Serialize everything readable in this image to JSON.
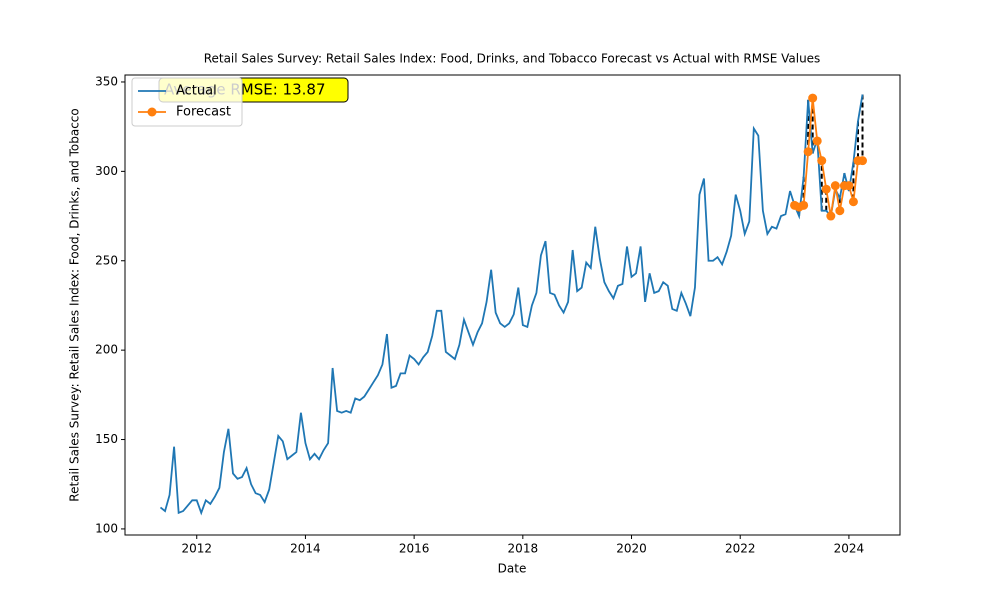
{
  "chart_data": {
    "type": "line",
    "title": "Retail Sales Survey: Retail Sales Index: Food, Drinks, and Tobacco Forecast vs Actual with RMSE Values",
    "x_label": "Date",
    "y_label": "Retail Sales Survey: Retail Sales Index: Food, Drinks, and Tobacco",
    "annotation": "Average RMSE: 13.87",
    "xlim": [
      2010.68,
      2024.94
    ],
    "xticks": [
      2012,
      2014,
      2016,
      2018,
      2020,
      2022,
      2024
    ],
    "ylim": [
      96.6,
      353.9
    ],
    "yticks": [
      100,
      150,
      200,
      250,
      300,
      350
    ],
    "legend": "upper left",
    "grid": false,
    "series": [
      {
        "name": "Actual",
        "color": "#1f77b4",
        "x": [
          2011.333,
          2011.417,
          2011.5,
          2011.583,
          2011.667,
          2011.75,
          2011.833,
          2011.917,
          2012,
          2012.083,
          2012.167,
          2012.25,
          2012.333,
          2012.417,
          2012.5,
          2012.583,
          2012.667,
          2012.75,
          2012.833,
          2012.917,
          2013,
          2013.083,
          2013.167,
          2013.25,
          2013.333,
          2013.417,
          2013.5,
          2013.583,
          2013.667,
          2013.75,
          2013.833,
          2013.917,
          2014,
          2014.083,
          2014.167,
          2014.25,
          2014.333,
          2014.417,
          2014.5,
          2014.583,
          2014.667,
          2014.75,
          2014.833,
          2014.917,
          2015,
          2015.083,
          2015.167,
          2015.25,
          2015.333,
          2015.417,
          2015.5,
          2015.583,
          2015.667,
          2015.75,
          2015.833,
          2015.917,
          2016,
          2016.083,
          2016.167,
          2016.25,
          2016.333,
          2016.417,
          2016.5,
          2016.583,
          2016.667,
          2016.75,
          2016.833,
          2016.917,
          2017,
          2017.083,
          2017.167,
          2017.25,
          2017.333,
          2017.417,
          2017.5,
          2017.583,
          2017.667,
          2017.75,
          2017.833,
          2017.917,
          2018,
          2018.083,
          2018.167,
          2018.25,
          2018.333,
          2018.417,
          2018.5,
          2018.583,
          2018.667,
          2018.75,
          2018.833,
          2018.917,
          2019,
          2019.083,
          2019.167,
          2019.25,
          2019.333,
          2019.417,
          2019.5,
          2019.583,
          2019.667,
          2019.75,
          2019.833,
          2019.917,
          2020,
          2020.083,
          2020.167,
          2020.25,
          2020.333,
          2020.417,
          2020.5,
          2020.583,
          2020.667,
          2020.75,
          2020.833,
          2020.917,
          2021,
          2021.083,
          2021.167,
          2021.25,
          2021.333,
          2021.417,
          2021.5,
          2021.583,
          2021.667,
          2021.75,
          2021.833,
          2021.917,
          2022,
          2022.083,
          2022.167,
          2022.25,
          2022.333,
          2022.417,
          2022.5,
          2022.583,
          2022.667,
          2022.75,
          2022.833,
          2022.917,
          2023,
          2023.083,
          2023.167,
          2023.25,
          2023.333,
          2023.417,
          2023.5,
          2023.583,
          2023.667,
          2023.75,
          2023.833,
          2023.917,
          2024,
          2024.083,
          2024.167,
          2024.25
        ],
        "values": [
          112,
          110,
          119,
          146,
          109,
          110,
          113,
          116,
          116,
          109,
          116,
          114,
          118,
          123,
          143,
          156,
          131,
          128,
          129,
          134,
          125,
          120,
          119,
          115,
          122,
          137,
          152,
          149,
          139,
          141,
          143,
          165,
          148,
          139,
          142,
          139,
          144,
          148,
          190,
          166,
          165,
          166,
          165,
          173,
          172,
          174,
          178,
          182,
          186,
          192,
          209,
          179,
          180,
          187,
          187,
          197,
          195,
          192,
          196,
          199,
          208,
          222,
          222,
          199,
          197,
          195,
          203,
          217,
          210,
          203,
          210,
          215,
          227,
          245,
          221,
          215,
          213,
          215,
          220,
          235,
          214,
          213,
          225,
          232,
          253,
          261,
          232,
          231,
          225,
          221,
          227,
          256,
          233,
          235,
          249,
          246,
          269,
          251,
          238,
          233,
          229,
          236,
          237,
          258,
          241,
          243,
          258,
          227,
          243,
          232,
          233,
          238,
          236,
          223,
          222,
          232,
          226,
          219,
          235,
          287,
          296,
          250,
          250,
          252,
          248,
          255,
          264,
          287,
          278,
          265,
          272,
          324,
          320,
          278,
          265,
          269,
          268,
          275,
          276,
          289,
          281,
          275,
          297,
          340,
          310,
          318,
          278,
          278,
          275,
          290,
          285,
          299,
          289,
          305,
          328,
          343
        ]
      },
      {
        "name": "Forecast",
        "color": "#ff7f0e",
        "marker": "circle",
        "x": [
          2023,
          2023.083,
          2023.167,
          2023.25,
          2023.333,
          2023.417,
          2023.5,
          2023.583,
          2023.667,
          2023.75,
          2023.833,
          2023.917,
          2024,
          2024.083,
          2024.167,
          2024.25
        ],
        "values": [
          281,
          280,
          281,
          311,
          341,
          317,
          306,
          290,
          275,
          292,
          278,
          292,
          292,
          283,
          306,
          306
        ]
      }
    ]
  }
}
